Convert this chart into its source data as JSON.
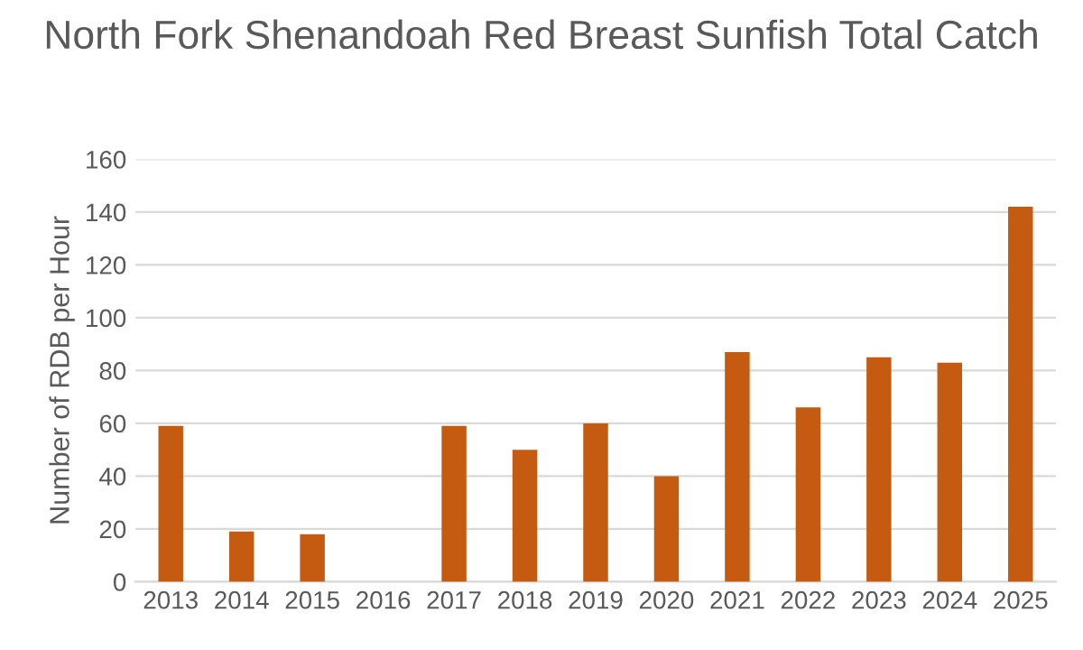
{
  "chart_data": {
    "type": "bar",
    "title": "North Fork Shenandoah Red Breast Sunfish Total Catch",
    "ylabel": "Number of RDB per Hour",
    "categories": [
      "2013",
      "2014",
      "2015",
      "2016",
      "2017",
      "2018",
      "2019",
      "2020",
      "2021",
      "2022",
      "2023",
      "2024",
      "2025"
    ],
    "values": [
      59,
      19,
      18,
      null,
      59,
      50,
      60,
      40,
      87,
      66,
      85,
      83,
      142
    ],
    "color": "#c55a11",
    "ylim": [
      0,
      160
    ],
    "yticks": [
      0,
      20,
      40,
      60,
      80,
      100,
      120,
      140,
      160
    ],
    "grid": "y"
  }
}
